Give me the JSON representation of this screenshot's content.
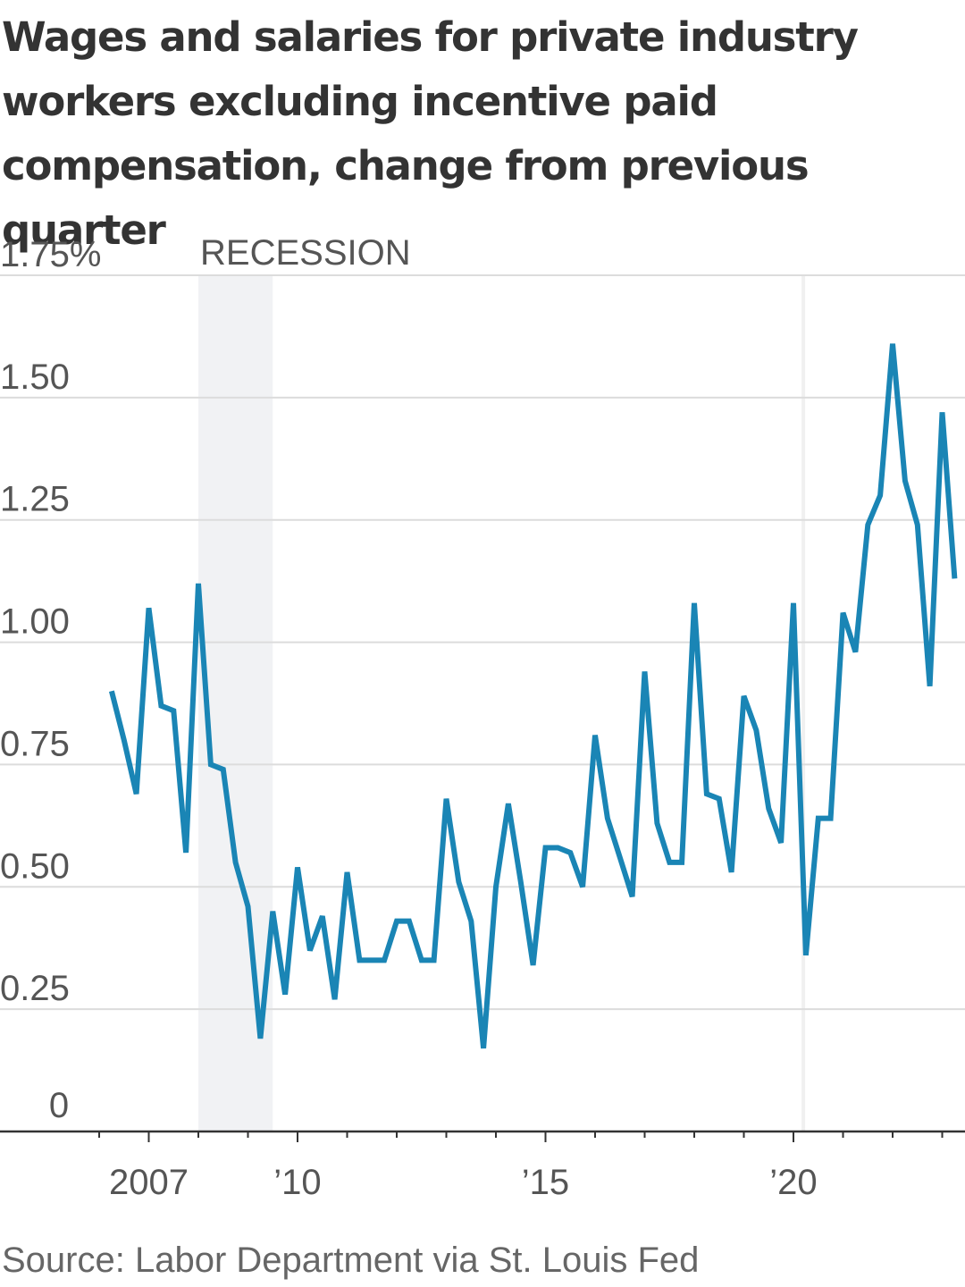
{
  "chart_data": {
    "type": "line",
    "title": "Wages and salaries for private industry workers excluding incentive paid compensation, change from previous quarter",
    "source": "Source: Labor Department via St. Louis Fed",
    "annotation": "RECESSION",
    "recession_span": [
      2008.0,
      2009.5
    ],
    "y_tick_labels": [
      "1.75%",
      "1.50",
      "1.25",
      "1.00",
      "0.75",
      "0.50",
      "0.25",
      "0"
    ],
    "y_ticks": [
      1.75,
      1.5,
      1.25,
      1.0,
      0.75,
      0.5,
      0.25,
      0
    ],
    "x_tick_labels": [
      "2007",
      "’10",
      "’15",
      "’20"
    ],
    "x_ticks": [
      2007,
      2010,
      2015,
      2020
    ],
    "ylim": [
      0,
      1.75
    ],
    "xlim": [
      2005.0,
      2023.5
    ],
    "grid": true,
    "series": [
      {
        "color": "#1a85b5",
        "x": [
          2006.25,
          2006.5,
          2006.75,
          2007.0,
          2007.25,
          2007.5,
          2007.75,
          2008.0,
          2008.25,
          2008.5,
          2008.75,
          2009.0,
          2009.25,
          2009.5,
          2009.75,
          2010.0,
          2010.25,
          2010.5,
          2010.75,
          2011.0,
          2011.25,
          2011.5,
          2011.75,
          2012.0,
          2012.25,
          2012.5,
          2012.75,
          2013.0,
          2013.25,
          2013.5,
          2013.75,
          2014.0,
          2014.25,
          2014.5,
          2014.75,
          2015.0,
          2015.25,
          2015.5,
          2015.75,
          2016.0,
          2016.25,
          2016.5,
          2016.75,
          2017.0,
          2017.25,
          2017.5,
          2017.75,
          2018.0,
          2018.25,
          2018.5,
          2018.75,
          2019.0,
          2019.25,
          2019.5,
          2019.75,
          2020.0,
          2020.25,
          2020.5,
          2020.75,
          2021.0,
          2021.25,
          2021.5,
          2021.75,
          2022.0,
          2022.25,
          2022.5,
          2022.75,
          2023.0,
          2023.25
        ],
        "values": [
          0.9,
          0.8,
          0.69,
          1.07,
          0.87,
          0.86,
          0.57,
          1.12,
          0.75,
          0.74,
          0.55,
          0.46,
          0.19,
          0.45,
          0.28,
          0.54,
          0.37,
          0.44,
          0.27,
          0.53,
          0.35,
          0.35,
          0.35,
          0.43,
          0.43,
          0.35,
          0.35,
          0.68,
          0.51,
          0.43,
          0.17,
          0.5,
          0.67,
          0.51,
          0.34,
          0.58,
          0.58,
          0.57,
          0.5,
          0.81,
          0.64,
          0.56,
          0.48,
          0.94,
          0.63,
          0.55,
          0.55,
          1.08,
          0.69,
          0.68,
          0.53,
          0.89,
          0.82,
          0.66,
          0.59,
          1.08,
          0.36,
          0.64,
          0.64,
          1.06,
          0.98,
          1.24,
          1.3,
          1.61,
          1.33,
          1.24,
          0.91,
          1.47,
          1.13
        ]
      }
    ]
  }
}
